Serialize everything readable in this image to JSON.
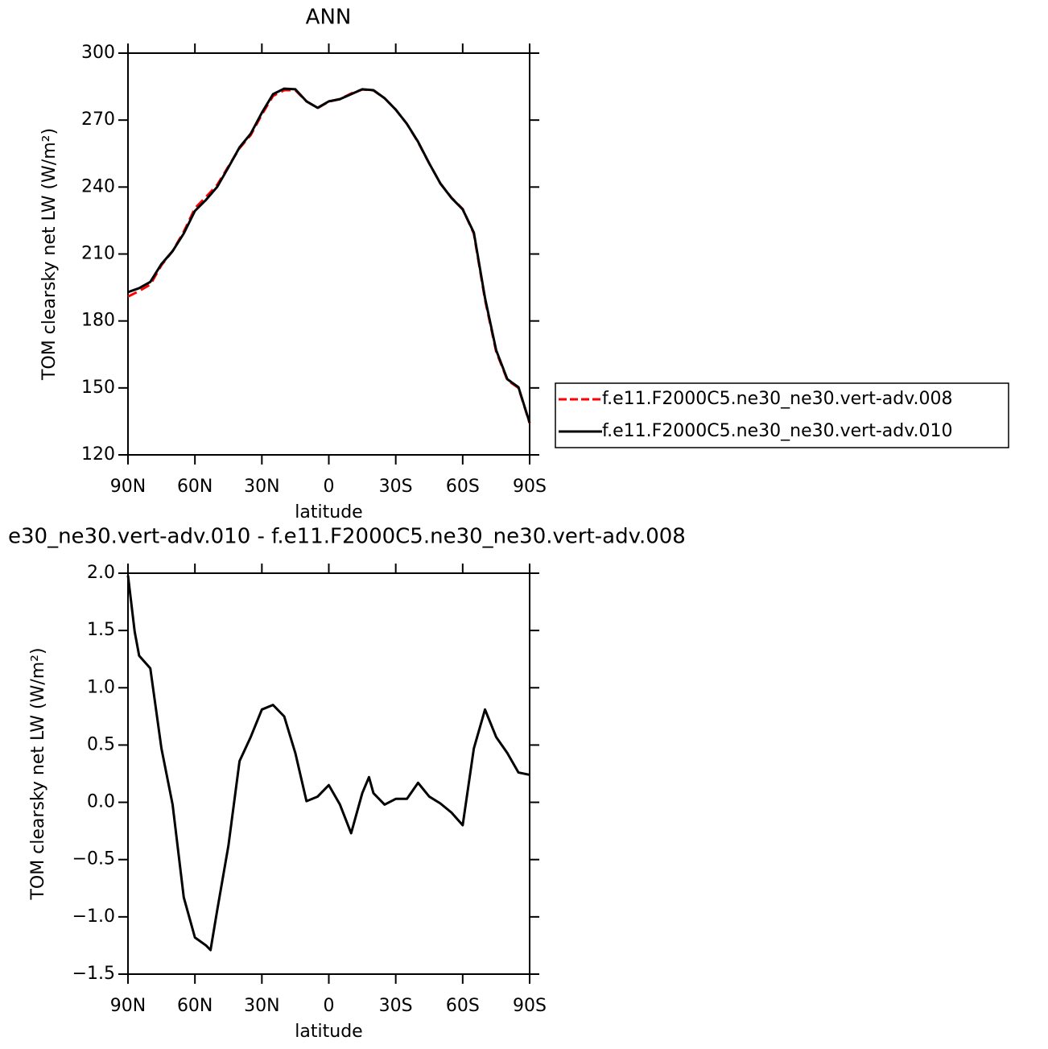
{
  "chart_data": [
    {
      "type": "line",
      "title": "ANN",
      "xlabel": "latitude",
      "ylabel": "TOM clearsky net LW (W/m²)",
      "x": [
        90,
        85,
        80,
        75,
        70,
        65,
        60,
        55,
        50,
        45,
        40,
        35,
        30,
        25,
        20,
        15,
        10,
        5,
        0,
        -5,
        -10,
        -15,
        -20,
        -25,
        -30,
        -35,
        -40,
        -45,
        -50,
        -55,
        -60,
        -65,
        -70,
        -75,
        -80,
        -85,
        -90
      ],
      "series": [
        {
          "name": "f.e11.F2000C5.ne30_ne30.vert-adv.008",
          "color": "#ff0000",
          "line_style": "dashed",
          "values": [
            190.9,
            193.4,
            196.3,
            205.0,
            211.3,
            220.0,
            230.5,
            235.6,
            241.0,
            249.2,
            257.4,
            263.3,
            272.5,
            280.8,
            283.4,
            283.4,
            278.4,
            275.4,
            278.3,
            279.4,
            281.9,
            283.7,
            283.3,
            279.8,
            274.7,
            268.3,
            260.1,
            250.6,
            241.6,
            235.2,
            230.2,
            219.1,
            189.5,
            166.3,
            153.5,
            150.0,
            134.2
          ]
        },
        {
          "name": "f.e11.F2000C5.ne30_ne30.vert-adv.010",
          "color": "#000000",
          "line_style": "solid",
          "values": [
            192.9,
            194.7,
            197.5,
            205.5,
            211.3,
            219.2,
            229.3,
            234.3,
            240.1,
            248.8,
            257.8,
            263.9,
            273.3,
            281.6,
            284.1,
            283.8,
            278.4,
            275.5,
            278.4,
            279.4,
            281.6,
            283.8,
            283.4,
            279.8,
            274.7,
            268.3,
            260.3,
            250.6,
            241.6,
            235.1,
            230.0,
            219.6,
            190.3,
            166.9,
            153.9,
            150.3,
            134.4
          ]
        }
      ],
      "xlim": [
        90,
        -90
      ],
      "xticks": [
        {
          "value": 90,
          "label": "90N"
        },
        {
          "value": 60,
          "label": "60N"
        },
        {
          "value": 30,
          "label": "30N"
        },
        0,
        {
          "value": -30,
          "label": "30S"
        },
        {
          "value": -60,
          "label": "60S"
        },
        {
          "value": -90,
          "label": "90S"
        }
      ],
      "ylim": [
        120,
        300
      ],
      "yticks": [
        120,
        150,
        180,
        210,
        240,
        270,
        300
      ],
      "legend_position": "right"
    },
    {
      "type": "line",
      "title": "e30_ne30.vert-adv.010 - f.e11.F2000C5.ne30_ne30.vert-adv.008",
      "xlabel": "latitude",
      "ylabel": "TOM clearsky net LW (W/m²)",
      "x": [
        90,
        87,
        85,
        80,
        75,
        70,
        65,
        60,
        55,
        53,
        50,
        45,
        40,
        35,
        30,
        25,
        20,
        15,
        10,
        5,
        0,
        -5,
        -10,
        -15,
        -18,
        -20,
        -25,
        -30,
        -35,
        -40,
        -45,
        -50,
        -55,
        -60,
        -65,
        -70,
        -75,
        -80,
        -85,
        -90
      ],
      "values": [
        1.98,
        1.49,
        1.28,
        1.17,
        0.47,
        -0.02,
        -0.83,
        -1.18,
        -1.25,
        -1.29,
        -0.94,
        -0.38,
        0.36,
        0.57,
        0.81,
        0.85,
        0.75,
        0.43,
        0.01,
        0.05,
        0.15,
        -0.02,
        -0.27,
        0.08,
        0.22,
        0.08,
        -0.02,
        0.03,
        0.03,
        0.17,
        0.05,
        -0.01,
        -0.09,
        -0.2,
        0.47,
        0.81,
        0.57,
        0.43,
        0.26,
        0.24
      ],
      "color": "#000000",
      "xlim": [
        90,
        -90
      ],
      "xticks": [
        {
          "value": 90,
          "label": "90N"
        },
        {
          "value": 60,
          "label": "60N"
        },
        {
          "value": 30,
          "label": "30N"
        },
        0,
        {
          "value": -30,
          "label": "30S"
        },
        {
          "value": -60,
          "label": "60S"
        },
        {
          "value": -90,
          "label": "90S"
        }
      ],
      "ylim": [
        -1.5,
        2.0
      ],
      "yticks": [
        {
          "value": -1.5,
          "label": "−1.5"
        },
        {
          "value": -1,
          "label": "−1.0"
        },
        {
          "value": -0.5,
          "label": "−0.5"
        },
        {
          "value": 0,
          "label": "0.0"
        },
        0.5,
        {
          "value": 1,
          "label": "1.0"
        },
        1.5,
        {
          "value": 2,
          "label": "2.0"
        }
      ]
    }
  ]
}
